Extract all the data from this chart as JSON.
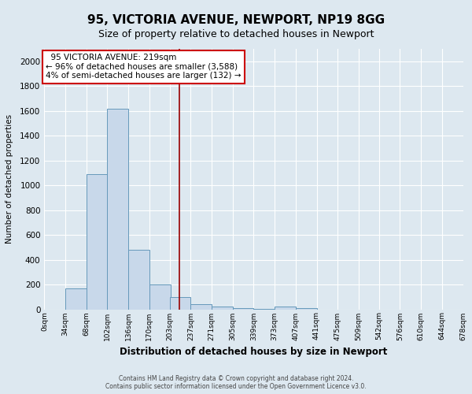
{
  "title_line1": "95, VICTORIA AVENUE, NEWPORT, NP19 8GG",
  "title_line2": "Size of property relative to detached houses in Newport",
  "xlabel": "Distribution of detached houses by size in Newport",
  "ylabel": "Number of detached properties",
  "footer_line1": "Contains HM Land Registry data © Crown copyright and database right 2024.",
  "footer_line2": "Contains public sector information licensed under the Open Government Licence v3.0.",
  "bin_labels": [
    "0sqm",
    "34sqm",
    "68sqm",
    "102sqm",
    "136sqm",
    "170sqm",
    "203sqm",
    "237sqm",
    "271sqm",
    "305sqm",
    "339sqm",
    "373sqm",
    "407sqm",
    "441sqm",
    "475sqm",
    "509sqm",
    "542sqm",
    "576sqm",
    "610sqm",
    "644sqm",
    "678sqm"
  ],
  "bin_edges": [
    0,
    34,
    68,
    102,
    136,
    170,
    203,
    237,
    271,
    305,
    339,
    373,
    407,
    441,
    475,
    509,
    542,
    576,
    610,
    644,
    678
  ],
  "bar_heights": [
    0,
    170,
    1090,
    1620,
    480,
    200,
    100,
    40,
    20,
    10,
    5,
    20,
    10,
    0,
    0,
    0,
    0,
    0,
    0,
    0
  ],
  "bar_color": "#c8d8ea",
  "bar_edge_color": "#6699bb",
  "vline_x": 219,
  "vline_color": "#990000",
  "ylim": [
    0,
    2100
  ],
  "yticks": [
    0,
    200,
    400,
    600,
    800,
    1000,
    1200,
    1400,
    1600,
    1800,
    2000
  ],
  "annotation_text_line1": "  95 VICTORIA AVENUE: 219sqm  ",
  "annotation_text_line2": "← 96% of detached houses are smaller (3,588)",
  "annotation_text_line3": "4% of semi-detached houses are larger (132) →",
  "annotation_box_color": "#ffffff",
  "annotation_box_edge_color": "#cc0000",
  "bg_color": "#dde8f0",
  "plot_bg_color": "#dde8f0",
  "grid_color": "#ffffff",
  "title_fontsize": 11,
  "subtitle_fontsize": 9
}
